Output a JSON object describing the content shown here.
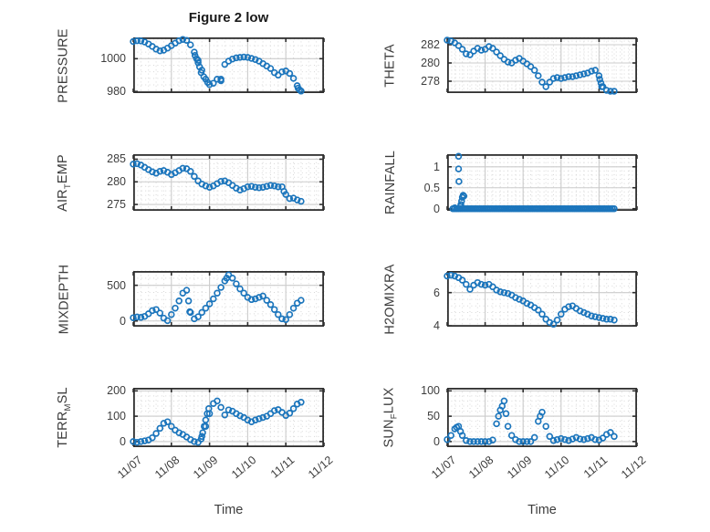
{
  "title": "Figure 2 low",
  "x_axis": {
    "label": "Time",
    "lim_days": [
      0,
      5
    ],
    "tick_positions": [
      0,
      1,
      2,
      3,
      4,
      5
    ],
    "tick_labels": [
      "11/07",
      "11/08",
      "11/09",
      "11/10",
      "11/11",
      "11/12"
    ],
    "minor_step": 0.2
  },
  "style": {
    "marker_color": "#1b75bc",
    "frame_color": "#2f2f2f",
    "major_grid_color": "#cccccc",
    "minor_grid_color": "#d8d8d8",
    "text_color": "#3d3d3d",
    "background": "#ffffff"
  },
  "chart_data": [
    {
      "type": "scatter",
      "id": "pressure",
      "row": 0,
      "col": 0,
      "ylabel": "PRESSURE",
      "ylabel_parts": [
        {
          "t": "PRESSURE"
        }
      ],
      "ylim": [
        979,
        1013
      ],
      "yticks": [
        {
          "pos": 1000,
          "label": "1000"
        },
        {
          "pos": 980,
          "label": "980"
        }
      ],
      "minor_y_step": 4,
      "series": {
        "x0": 0,
        "dx": 0.1,
        "y": [
          1010.5,
          1011,
          1010.8,
          1010.2,
          1009,
          1007.5,
          1005.8,
          1004.8,
          1005.2,
          1006.5,
          1008,
          1009.5,
          1011,
          1011.8,
          1011.2,
          1008.5,
          1004,
          999,
          993,
          987.5,
          984.2,
          985,
          987.5,
          986.5,
          996.5,
          998.5,
          999.8,
          1000.5,
          1000.8,
          1001,
          1000.8,
          1000.2,
          999.5,
          998.5,
          997,
          995.5,
          994,
          991.5,
          990,
          992,
          992.5,
          991,
          988,
          983.5,
          980.2
        ]
      },
      "extra_points": [
        [
          1.62,
          1002
        ],
        [
          1.66,
          1000
        ],
        [
          1.7,
          997.5
        ],
        [
          1.74,
          995
        ],
        [
          1.78,
          991.5
        ],
        [
          1.85,
          989
        ],
        [
          1.95,
          985.5
        ],
        [
          2.3,
          987.5
        ],
        [
          4.32,
          982
        ],
        [
          4.36,
          981
        ]
      ]
    },
    {
      "type": "scatter",
      "id": "theta",
      "row": 0,
      "col": 1,
      "ylabel": "THETA",
      "ylabel_parts": [
        {
          "t": "THETA"
        }
      ],
      "ylim": [
        276.7,
        282.8
      ],
      "yticks": [
        {
          "pos": 282,
          "label": "282"
        },
        {
          "pos": 280,
          "label": "280"
        },
        {
          "pos": 278,
          "label": "278"
        }
      ],
      "minor_y_step": 0.4,
      "series": {
        "x0": 0,
        "dx": 0.1,
        "y": [
          282.5,
          282.4,
          282.2,
          281.9,
          281.5,
          281.0,
          280.9,
          281.3,
          281.6,
          281.4,
          281.5,
          281.8,
          281.6,
          281.2,
          280.8,
          280.4,
          280.1,
          280.0,
          280.3,
          280.5,
          280.2,
          279.9,
          279.6,
          279.2,
          278.6,
          277.9,
          277.4,
          277.9,
          278.3,
          278.4,
          278.3,
          278.4,
          278.5,
          278.5,
          278.6,
          278.7,
          278.8,
          278.9,
          279.1,
          279.2,
          278.6,
          277.4,
          277.0,
          276.9,
          276.9
        ]
      },
      "extra_points": [
        [
          4.02,
          278.2
        ],
        [
          4.05,
          277.8
        ],
        [
          4.07,
          277.4
        ]
      ]
    },
    {
      "type": "scatter",
      "id": "air-temp",
      "row": 1,
      "col": 0,
      "ylabel": "AIR_TEMP",
      "ylabel_parts": [
        {
          "t": "AIR"
        },
        {
          "t": "T",
          "sub": true
        },
        {
          "t": "EMP"
        }
      ],
      "ylim": [
        273.6,
        286.1
      ],
      "yticks": [
        {
          "pos": 285,
          "label": "285"
        },
        {
          "pos": 280,
          "label": "280"
        },
        {
          "pos": 275,
          "label": "275"
        }
      ],
      "minor_y_step": 1,
      "series": {
        "x0": 0,
        "dx": 0.1,
        "y": [
          283.9,
          284.0,
          283.7,
          283.2,
          282.7,
          282.2,
          281.9,
          282.3,
          282.5,
          282.1,
          281.6,
          282.0,
          282.5,
          283.0,
          282.9,
          282.3,
          281.2,
          280.2,
          279.5,
          279.1,
          278.8,
          279.1,
          279.6,
          280.1,
          280.2,
          279.8,
          279.2,
          278.6,
          278.2,
          278.5,
          278.9,
          279.0,
          278.8,
          278.7,
          278.8,
          279.0,
          279.2,
          279.1,
          278.9,
          278.9,
          277.2,
          276.3,
          276.4,
          276.0,
          275.7
        ]
      },
      "extra_points": [
        [
          3.95,
          277.9
        ]
      ]
    },
    {
      "type": "scatter",
      "id": "rainfall",
      "row": 1,
      "col": 1,
      "ylabel": "RAINFALL",
      "ylabel_parts": [
        {
          "t": "RAINFALL"
        }
      ],
      "ylim": [
        -0.05,
        1.3
      ],
      "yticks": [
        {
          "pos": 1,
          "label": "1"
        },
        {
          "pos": 0.5,
          "label": "0.5"
        },
        {
          "pos": 0,
          "label": "0"
        }
      ],
      "minor_y_step": 0.1,
      "series": {
        "x0": 0.15,
        "dx": 0.05,
        "n": 86,
        "const": 0
      },
      "extra_points": [
        [
          0.2,
          0.02
        ],
        [
          0.3,
          1.25
        ],
        [
          0.3,
          0.95
        ],
        [
          0.31,
          0.65
        ],
        [
          0.35,
          0.05
        ],
        [
          0.36,
          0.1
        ],
        [
          0.38,
          0.18
        ],
        [
          0.4,
          0.27
        ],
        [
          0.42,
          0.32
        ],
        [
          0.44,
          0.3
        ]
      ]
    },
    {
      "type": "scatter",
      "id": "mixdepth",
      "row": 2,
      "col": 0,
      "ylabel": "MIXDEPTH",
      "ylabel_parts": [
        {
          "t": "MIXDEPTH"
        }
      ],
      "ylim": [
        -80,
        700
      ],
      "yticks": [
        {
          "pos": 500,
          "label": "500"
        },
        {
          "pos": 0,
          "label": "0"
        }
      ],
      "minor_y_step": 100,
      "series": {
        "x0": 0,
        "dx": 0.1,
        "y": [
          45,
          55,
          50,
          65,
          100,
          145,
          160,
          110,
          40,
          5,
          90,
          180,
          280,
          390,
          430,
          120,
          30,
          60,
          120,
          180,
          240,
          310,
          390,
          470,
          560,
          645,
          600,
          520,
          450,
          390,
          330,
          300,
          310,
          330,
          350,
          290,
          230,
          160,
          90,
          30,
          20,
          90,
          180,
          250,
          290
        ]
      },
      "extra_points": [
        [
          1.45,
          280
        ],
        [
          1.48,
          130
        ],
        [
          2.45,
          600
        ]
      ]
    },
    {
      "type": "scatter",
      "id": "h2omixra",
      "row": 2,
      "col": 1,
      "ylabel": "H2OMIXRA",
      "ylabel_parts": [
        {
          "t": "H2OMIXRA"
        }
      ],
      "ylim": [
        3.95,
        7.3
      ],
      "yticks": [
        {
          "pos": 6,
          "label": "6"
        },
        {
          "pos": 4,
          "label": "4"
        }
      ],
      "minor_y_step": 0.4,
      "series": {
        "x0": 0,
        "dx": 0.1,
        "y": [
          7.0,
          7.05,
          7.0,
          6.9,
          6.75,
          6.5,
          6.2,
          6.45,
          6.6,
          6.5,
          6.45,
          6.5,
          6.35,
          6.15,
          6.05,
          6.0,
          5.95,
          5.85,
          5.7,
          5.6,
          5.5,
          5.35,
          5.25,
          5.1,
          4.95,
          4.7,
          4.4,
          4.2,
          4.1,
          4.35,
          4.7,
          5.0,
          5.15,
          5.2,
          5.05,
          4.9,
          4.8,
          4.7,
          4.6,
          4.55,
          4.5,
          4.45,
          4.4,
          4.4,
          4.35
        ]
      },
      "extra_points": []
    },
    {
      "type": "scatter",
      "id": "terr-msl",
      "row": 3,
      "col": 0,
      "ylabel": "TERR_MSL",
      "ylabel_parts": [
        {
          "t": "TERR"
        },
        {
          "t": "M",
          "sub": true
        },
        {
          "t": "SL"
        }
      ],
      "ylim": [
        -22,
        212
      ],
      "yticks": [
        {
          "pos": 200,
          "label": "200"
        },
        {
          "pos": 100,
          "label": "100"
        },
        {
          "pos": 0,
          "label": "0"
        }
      ],
      "minor_y_step": 20,
      "series": {
        "x0": 0,
        "dx": 0.1,
        "y": [
          0,
          -3,
          0,
          3,
          6,
          15,
          32,
          52,
          72,
          78,
          60,
          45,
          35,
          28,
          18,
          8,
          0,
          -3,
          20,
          60,
          110,
          150,
          160,
          135,
          105,
          125,
          120,
          110,
          102,
          95,
          85,
          78,
          85,
          90,
          95,
          100,
          110,
          122,
          126,
          115,
          103,
          112,
          130,
          148,
          155
        ]
      },
      "extra_points": [
        [
          1.78,
          10
        ],
        [
          1.82,
          35
        ],
        [
          1.86,
          60
        ],
        [
          1.9,
          85
        ],
        [
          1.94,
          110
        ],
        [
          1.98,
          130
        ]
      ]
    },
    {
      "type": "scatter",
      "id": "sun-flux",
      "row": 3,
      "col": 1,
      "ylabel": "SUN_FLUX",
      "ylabel_parts": [
        {
          "t": "SUN"
        },
        {
          "t": "F",
          "sub": true
        },
        {
          "t": "LUX"
        }
      ],
      "ylim": [
        -11,
        106
      ],
      "yticks": [
        {
          "pos": 100,
          "label": "100"
        },
        {
          "pos": 50,
          "label": "50"
        },
        {
          "pos": 0,
          "label": "0"
        }
      ],
      "minor_y_step": 10,
      "series": {
        "x0": 0,
        "dx": 0.1,
        "y": [
          4,
          12,
          25,
          30,
          12,
          2,
          0,
          0,
          0,
          0,
          0,
          0,
          3,
          35,
          62,
          80,
          30,
          12,
          4,
          0,
          0,
          0,
          0,
          8,
          40,
          58,
          30,
          10,
          2,
          4,
          6,
          4,
          2,
          5,
          8,
          5,
          4,
          6,
          8,
          4,
          3,
          7,
          14,
          18,
          10
        ]
      },
      "extra_points": [
        [
          0.25,
          28
        ],
        [
          0.35,
          20
        ],
        [
          1.35,
          50
        ],
        [
          1.45,
          70
        ],
        [
          1.55,
          55
        ],
        [
          2.45,
          50
        ]
      ]
    }
  ]
}
